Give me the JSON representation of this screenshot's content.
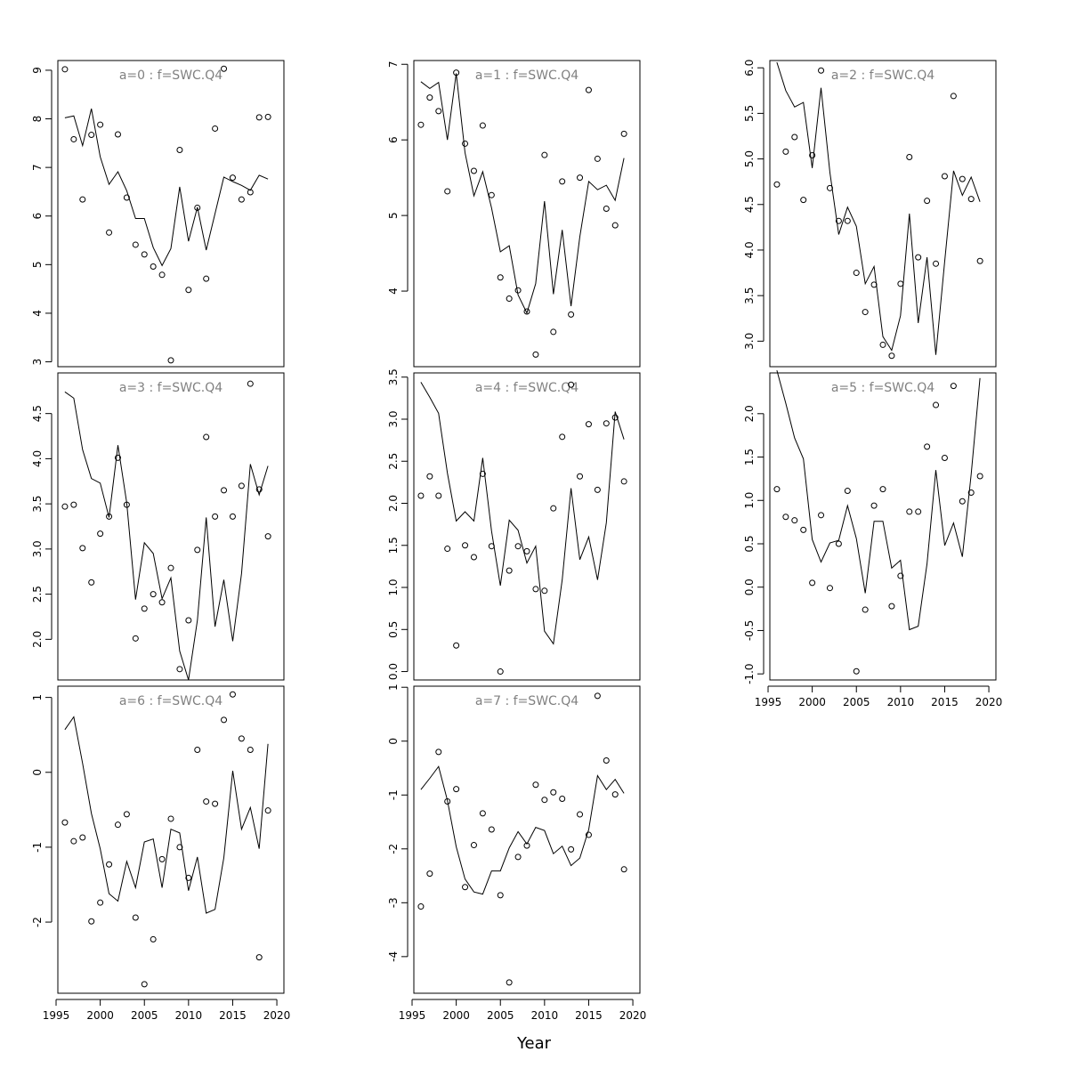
{
  "figure": {
    "xlabel": "Year",
    "line_color": "#000000",
    "label_color": "#808080",
    "marker": "open-circle"
  },
  "chart_data": [
    {
      "type": "line+scatter",
      "title": "a=0  :  f=SWC.Q4",
      "x": [
        1996,
        1997,
        1998,
        1999,
        2000,
        2001,
        2002,
        2003,
        2004,
        2005,
        2006,
        2007,
        2008,
        2009,
        2010,
        2011,
        2012,
        2013,
        2014,
        2015,
        2016,
        2017,
        2018,
        2019
      ],
      "line": [
        8.02,
        8.06,
        7.45,
        8.21,
        7.22,
        6.65,
        6.91,
        6.52,
        5.95,
        5.95,
        5.35,
        4.98,
        5.33,
        6.6,
        5.48,
        6.18,
        5.3,
        6.05,
        6.8,
        6.71,
        6.63,
        6.53,
        6.84,
        6.76
      ],
      "points": [
        9.02,
        7.58,
        6.34,
        7.67,
        7.88,
        5.66,
        7.68,
        6.38,
        5.41,
        5.21,
        4.96,
        4.79,
        3.03,
        7.36,
        4.48,
        6.17,
        4.71,
        7.8,
        9.03,
        6.79,
        6.34,
        6.49,
        8.03,
        8.04
      ],
      "ylim": [
        2.9,
        9.2
      ],
      "yticks": [
        3,
        4,
        5,
        6,
        7,
        8,
        9
      ],
      "ytick_labels": [
        "3",
        "4",
        "5",
        "6",
        "7",
        "8",
        "9"
      ]
    },
    {
      "type": "line+scatter",
      "title": "a=1  :  f=SWC.Q4",
      "x": [
        1996,
        1997,
        1998,
        1999,
        2000,
        2001,
        2002,
        2003,
        2004,
        2005,
        2006,
        2007,
        2008,
        2009,
        2010,
        2011,
        2012,
        2013,
        2014,
        2015,
        2016,
        2017,
        2018,
        2019
      ],
      "line": [
        6.77,
        6.68,
        6.76,
        6.0,
        6.88,
        5.83,
        5.26,
        5.58,
        5.1,
        4.52,
        4.6,
        3.95,
        3.71,
        4.1,
        5.19,
        3.96,
        4.81,
        3.8,
        4.72,
        5.45,
        5.34,
        5.4,
        5.2,
        5.76
      ],
      "points": [
        6.2,
        6.56,
        6.38,
        5.32,
        6.89,
        5.95,
        5.59,
        6.19,
        5.27,
        4.18,
        3.9,
        4.01,
        3.73,
        3.16,
        5.8,
        3.46,
        5.45,
        3.69,
        5.5,
        6.66,
        5.75,
        5.09,
        4.87,
        6.08
      ],
      "ylim": [
        3.0,
        7.05
      ],
      "yticks": [
        4,
        5,
        6,
        7
      ],
      "ytick_labels": [
        "4",
        "5",
        "6",
        "7"
      ]
    },
    {
      "type": "line+scatter",
      "title": "a=2  :  f=SWC.Q4",
      "x": [
        1996,
        1997,
        1998,
        1999,
        2000,
        2001,
        2002,
        2003,
        2004,
        2005,
        2006,
        2007,
        2008,
        2009,
        2010,
        2011,
        2012,
        2013,
        2014,
        2015,
        2016,
        2017,
        2018,
        2019
      ],
      "line": [
        6.06,
        5.75,
        5.57,
        5.62,
        4.9,
        5.78,
        4.85,
        4.17,
        4.47,
        4.26,
        3.63,
        3.82,
        3.05,
        2.9,
        3.28,
        4.4,
        3.2,
        3.92,
        2.85,
        3.88,
        4.87,
        4.6,
        4.8,
        4.53
      ],
      "points": [
        4.72,
        5.08,
        5.24,
        4.55,
        5.04,
        5.97,
        4.68,
        4.32,
        4.32,
        3.75,
        3.32,
        3.62,
        2.96,
        2.84,
        3.63,
        5.02,
        3.92,
        4.54,
        3.85,
        4.81,
        5.69,
        4.78,
        4.56,
        3.88
      ],
      "ylim": [
        2.72,
        6.08
      ],
      "yticks": [
        3.0,
        3.5,
        4.0,
        4.5,
        5.0,
        5.5,
        6.0
      ],
      "ytick_labels": [
        "3.0",
        "3.5",
        "4.0",
        "4.5",
        "5.0",
        "5.5",
        "6.0"
      ]
    },
    {
      "type": "line+scatter",
      "title": "a=3  :  f=SWC.Q4",
      "x": [
        1996,
        1997,
        1998,
        1999,
        2000,
        2001,
        2002,
        2003,
        2004,
        2005,
        2006,
        2007,
        2008,
        2009,
        2010,
        2011,
        2012,
        2013,
        2014,
        2015,
        2016,
        2017,
        2018,
        2019
      ],
      "line": [
        4.74,
        4.67,
        4.1,
        3.78,
        3.73,
        3.35,
        4.15,
        3.51,
        2.44,
        3.07,
        2.95,
        2.45,
        2.68,
        1.87,
        1.55,
        2.21,
        3.35,
        2.14,
        2.66,
        1.98,
        2.73,
        3.94,
        3.6,
        3.92
      ],
      "points": [
        3.47,
        3.49,
        3.01,
        2.63,
        3.17,
        3.36,
        4.01,
        3.49,
        2.01,
        2.34,
        2.5,
        2.41,
        2.79,
        1.67,
        2.21,
        2.99,
        4.24,
        3.36,
        3.65,
        3.36,
        3.7,
        4.83,
        3.66,
        3.14
      ],
      "ylim": [
        1.55,
        4.95
      ],
      "yticks": [
        2.0,
        2.5,
        3.0,
        3.5,
        4.0,
        4.5
      ],
      "ytick_labels": [
        "2.0",
        "2.5",
        "3.0",
        "3.5",
        "4.0",
        "4.5"
      ]
    },
    {
      "type": "line+scatter",
      "title": "a=4  :  f=SWC.Q4",
      "x": [
        1996,
        1997,
        1998,
        1999,
        2000,
        2001,
        2002,
        2003,
        2004,
        2005,
        2006,
        2007,
        2008,
        2009,
        2010,
        2011,
        2012,
        2013,
        2014,
        2015,
        2016,
        2017,
        2018,
        2019
      ],
      "line": [
        3.44,
        3.26,
        3.07,
        2.36,
        1.79,
        1.9,
        1.79,
        2.54,
        1.67,
        1.02,
        1.8,
        1.68,
        1.29,
        1.49,
        0.48,
        0.33,
        1.09,
        2.18,
        1.33,
        1.6,
        1.09,
        1.77,
        3.09,
        2.76
      ],
      "points": [
        2.09,
        2.32,
        2.09,
        1.46,
        0.31,
        1.5,
        1.36,
        2.35,
        1.49,
        0.0,
        1.2,
        1.49,
        1.43,
        0.98,
        0.96,
        1.94,
        2.79,
        3.41,
        2.32,
        2.94,
        2.16,
        2.95,
        3.02,
        2.26
      ],
      "ylim": [
        -0.1,
        3.55
      ],
      "yticks": [
        0.0,
        0.5,
        1.0,
        1.5,
        2.0,
        2.5,
        3.0,
        3.5
      ],
      "ytick_labels": [
        "0.0",
        "0.5",
        "1.0",
        "1.5",
        "2.0",
        "2.5",
        "3.0",
        "3.5"
      ]
    },
    {
      "type": "line+scatter",
      "title": "a=5  :  f=SWC.Q4",
      "x": [
        1996,
        1997,
        1998,
        1999,
        2000,
        2001,
        2002,
        2003,
        2004,
        2005,
        2006,
        2007,
        2008,
        2009,
        2010,
        2011,
        2012,
        2013,
        2014,
        2015,
        2016,
        2017,
        2018,
        2019
      ],
      "line": [
        2.5,
        2.12,
        1.72,
        1.48,
        0.55,
        0.29,
        0.51,
        0.54,
        0.94,
        0.56,
        -0.07,
        0.76,
        0.76,
        0.22,
        0.31,
        -0.49,
        -0.45,
        0.27,
        1.35,
        0.48,
        0.74,
        0.35,
        1.3,
        2.41
      ],
      "points": [
        1.13,
        0.81,
        0.77,
        0.66,
        0.05,
        0.83,
        -0.01,
        0.5,
        1.11,
        -0.97,
        -0.26,
        0.94,
        1.13,
        -0.22,
        0.13,
        0.87,
        0.87,
        1.62,
        2.1,
        1.49,
        2.32,
        0.99,
        1.09,
        1.28
      ],
      "ylim": [
        -1.07,
        2.47
      ],
      "yticks": [
        -1.0,
        -0.5,
        0.0,
        0.5,
        1.0,
        1.5,
        2.0
      ],
      "ytick_labels": [
        "-1.0",
        "-0.5",
        "0.0",
        "0.5",
        "1.0",
        "1.5",
        "2.0"
      ]
    },
    {
      "type": "line+scatter",
      "title": "a=6  :  f=SWC.Q4",
      "x": [
        1996,
        1997,
        1998,
        1999,
        2000,
        2001,
        2002,
        2003,
        2004,
        2005,
        2006,
        2007,
        2008,
        2009,
        2010,
        2011,
        2012,
        2013,
        2014,
        2015,
        2016,
        2017,
        2018,
        2019
      ],
      "line": [
        0.57,
        0.74,
        0.12,
        -0.55,
        -1.02,
        -1.62,
        -1.72,
        -1.19,
        -1.54,
        -0.93,
        -0.89,
        -1.54,
        -0.76,
        -0.81,
        -1.58,
        -1.13,
        -1.88,
        -1.83,
        -1.14,
        0.02,
        -0.76,
        -0.47,
        -1.02,
        0.38
      ],
      "points": [
        -0.67,
        -0.92,
        -0.87,
        -1.99,
        -1.74,
        -1.23,
        -0.7,
        -0.56,
        -1.94,
        -2.83,
        -2.23,
        -1.16,
        -0.62,
        -1.0,
        -1.41,
        0.3,
        -0.39,
        -0.42,
        0.7,
        1.04,
        0.45,
        0.3,
        -2.47,
        -0.51
      ],
      "ylim": [
        -2.95,
        1.15
      ],
      "yticks": [
        -2,
        -1,
        0,
        1
      ],
      "ytick_labels": [
        "-2",
        "-1",
        "0",
        "1"
      ]
    },
    {
      "type": "line+scatter",
      "title": "a=7  :  f=SWC.Q4",
      "x": [
        1996,
        1997,
        1998,
        1999,
        2000,
        2001,
        2002,
        2003,
        2004,
        2005,
        2006,
        2007,
        2008,
        2009,
        2010,
        2011,
        2012,
        2013,
        2014,
        2015,
        2016,
        2017,
        2018,
        2019
      ],
      "line": [
        -0.9,
        -0.69,
        -0.47,
        -1.1,
        -1.96,
        -2.56,
        -2.8,
        -2.84,
        -2.41,
        -2.41,
        -1.98,
        -1.68,
        -1.91,
        -1.6,
        -1.66,
        -2.09,
        -1.95,
        -2.31,
        -2.17,
        -1.64,
        -0.64,
        -0.9,
        -0.71,
        -0.97
      ],
      "points": [
        -3.07,
        -2.46,
        -0.2,
        -1.12,
        -0.89,
        -2.71,
        -1.93,
        -1.34,
        -1.64,
        -2.86,
        -4.48,
        -2.15,
        -1.94,
        -0.81,
        -1.09,
        -0.95,
        -1.07,
        -2.01,
        -1.36,
        -1.74,
        0.84,
        -0.36,
        -0.99,
        -2.38
      ],
      "ylim": [
        -4.68,
        1.02
      ],
      "yticks": [
        -4,
        -3,
        -2,
        -1,
        0,
        1
      ],
      "ytick_labels": [
        "-4",
        "-3",
        "-2",
        "-1",
        "0",
        "1"
      ]
    }
  ],
  "xaxis": {
    "xlim": [
      1995.2,
      2020.8
    ],
    "ticks": [
      1995,
      2000,
      2005,
      2010,
      2015,
      2020
    ],
    "tick_labels": [
      "1995",
      "2000",
      "2005",
      "2010",
      "2015",
      "2020"
    ]
  }
}
